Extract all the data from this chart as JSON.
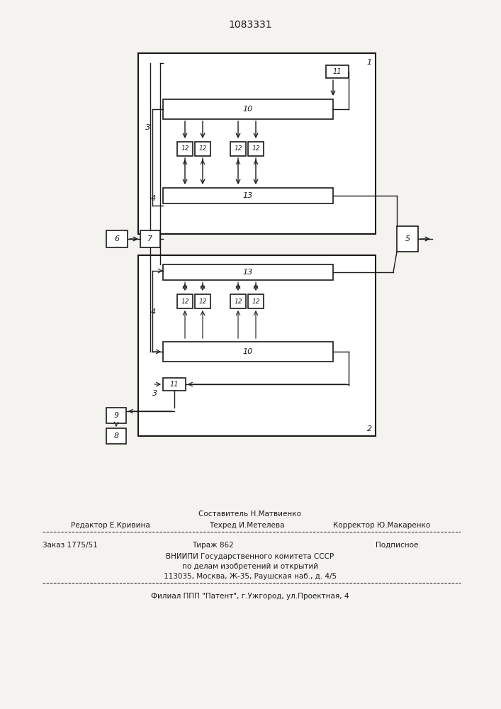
{
  "title": "1083331",
  "bg_color": "#f0eeea",
  "line_color": "#1a1a1a",
  "footer_lines": [
    {
      "left": "Редактор Е.Кривина",
      "center": "Техред И.Метелева",
      "right": "Корректор Ю.Макаренко"
    },
    {
      "center": "Составитель Н.Матвиенко"
    }
  ],
  "footer_bottom": [
    "Заказ 1775/51          Тираж 862          Подписное",
    "     ВНИИПИ Государственного комитета СССР",
    "          по делам изобретений и открытий",
    "     113035, Москва, Ж-35, Раушская наб., д. 4/5",
    "Филиал ППП \"Патент\", г.Ужгород, ул.Проектная, 4"
  ]
}
